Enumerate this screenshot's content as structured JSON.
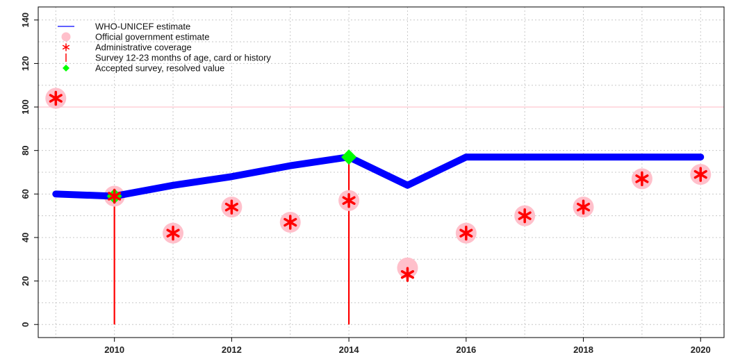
{
  "chart_data": {
    "type": "line",
    "title": "",
    "xlabel": "",
    "ylabel": "",
    "xlim": [
      2008.7,
      2020.4
    ],
    "ylim": [
      -6,
      146
    ],
    "x_ticks": [
      2010,
      2012,
      2014,
      2016,
      2018,
      2020
    ],
    "y_ticks": [
      0,
      20,
      40,
      60,
      80,
      100,
      120,
      140
    ],
    "grid": true,
    "reference_line": {
      "y": 100,
      "color": "#ffc0cb"
    },
    "legend_position": "top-left",
    "series": [
      {
        "name": "WHO-UNICEF estimate",
        "kind": "line",
        "color": "#0000ff",
        "x": [
          2009,
          2010,
          2011,
          2012,
          2013,
          2014,
          2015,
          2016,
          2017,
          2018,
          2019,
          2020
        ],
        "y": [
          60,
          59,
          64,
          68,
          73,
          77,
          64,
          77,
          77,
          77,
          77,
          77
        ]
      },
      {
        "name": "Official government estimate",
        "kind": "point",
        "color": "#ffc0cb",
        "x": [
          2009,
          2010,
          2011,
          2012,
          2013,
          2014,
          2015,
          2016,
          2017,
          2018,
          2019,
          2020
        ],
        "y": [
          104,
          59,
          42,
          54,
          47,
          57,
          26,
          42,
          50,
          54,
          67,
          69
        ]
      },
      {
        "name": "Administrative coverage",
        "kind": "asterisk",
        "color": "#ff0000",
        "x": [
          2009,
          2010,
          2011,
          2012,
          2013,
          2014,
          2015,
          2016,
          2017,
          2018,
          2019,
          2020
        ],
        "y": [
          104,
          59,
          42,
          54,
          47,
          57,
          23,
          42,
          50,
          54,
          67,
          69
        ]
      },
      {
        "name": "Survey 12-23 months of age, card or history",
        "kind": "vline",
        "color": "#ff0000",
        "x": [
          2010,
          2014
        ],
        "y": [
          59,
          77
        ]
      },
      {
        "name": "Accepted survey, resolved value",
        "kind": "diamond",
        "color": "#00ff00",
        "x": [
          2010,
          2014
        ],
        "y": [
          59,
          77
        ]
      }
    ]
  }
}
